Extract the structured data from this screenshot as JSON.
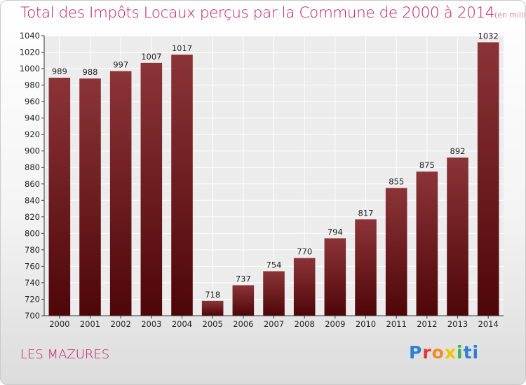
{
  "page": {
    "title": "Total des Impôts Locaux perçus par la Commune de 2000 à 2014",
    "unit": "(en milliers d'€)",
    "commune": "LES MAZURES",
    "logo": [
      "P",
      "r",
      "o",
      "x",
      "i",
      "t",
      "i"
    ]
  },
  "colors": {
    "bar_light": "#8b3438",
    "bar_dark": "#4e0608",
    "title": "#c2185b",
    "grid": "#ffffff"
  },
  "chart_data": {
    "type": "bar",
    "title": "Total des Impôts Locaux perçus par la Commune de 2000 à 2014",
    "ylabel": "en milliers d'€",
    "xlabel": "",
    "categories": [
      "2000",
      "2001",
      "2002",
      "2003",
      "2004",
      "2005",
      "2006",
      "2007",
      "2008",
      "2009",
      "2010",
      "2011",
      "2012",
      "2013",
      "2014"
    ],
    "values": [
      989,
      988,
      997,
      1007,
      1017,
      718,
      737,
      754,
      770,
      794,
      817,
      855,
      875,
      892,
      1032
    ],
    "ylim": [
      700,
      1040
    ],
    "yticks": [
      700,
      720,
      740,
      760,
      780,
      800,
      820,
      840,
      860,
      880,
      900,
      920,
      940,
      960,
      980,
      1000,
      1020,
      1040
    ],
    "grid": true
  }
}
